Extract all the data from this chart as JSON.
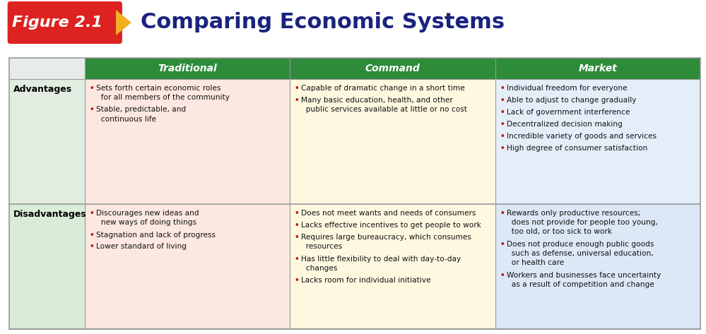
{
  "title": "Comparing Economic Systems",
  "figure_label": "Figure 2.1",
  "header_bg": "#2e8b3a",
  "header_text_color": "#ffffff",
  "columns": [
    "Traditional",
    "Command",
    "Market"
  ],
  "row_labels": [
    "Advantages",
    "Disadvantages"
  ],
  "title_color": "#1a237e",
  "figure_label_bg": "#dd2222",
  "figure_label_text_color": "#ffffff",
  "arrow_color": "#f0b020",
  "row_label_color": "#000000",
  "bullet_color": "#cc1111",
  "cell_bg_adv": [
    "#fce8e0",
    "#fef8e0",
    "#e4eef8"
  ],
  "cell_bg_dis": [
    "#fce8e0",
    "#fef8e0",
    "#dce8f5"
  ],
  "col0_bg_adv": "#e0ede0",
  "col0_bg_dis": "#d8ecd8",
  "border_color": "#999999",
  "header_line_color": "#dddddd",
  "content": {
    "adv_traditional": [
      [
        "• ",
        "Sets forth certain economic roles\n  for all members of the community"
      ],
      [
        "• ",
        "Stable, predictable, and\n  continuous life"
      ]
    ],
    "adv_command": [
      [
        "• ",
        "Capable of dramatic change in a short time"
      ],
      [
        "• ",
        "Many basic education, health, and other\n  public services available at little or no cost"
      ]
    ],
    "adv_market": [
      [
        "• ",
        "Individual freedom for everyone"
      ],
      [
        "• ",
        "Able to adjust to change gradually"
      ],
      [
        "• ",
        "Lack of government interference"
      ],
      [
        "• ",
        "Decentralized decision making"
      ],
      [
        "• ",
        "Incredible variety of goods and services"
      ],
      [
        "• ",
        "High degree of consumer satisfaction"
      ]
    ],
    "dis_traditional": [
      [
        "• ",
        "Discourages new ideas and\n  new ways of doing things"
      ],
      [
        "• ",
        "Stagnation and lack of progress"
      ],
      [
        "• ",
        "Lower standard of living"
      ]
    ],
    "dis_command": [
      [
        "• ",
        "Does not meet wants and needs of consumers"
      ],
      [
        "• ",
        "Lacks effective incentives to get people to work"
      ],
      [
        "• ",
        "Requires large bureaucracy, which consumes\n  resources"
      ],
      [
        "• ",
        "Has little flexibility to deal with day-to-day\n  changes"
      ],
      [
        "• ",
        "Lacks room for individual initiative"
      ]
    ],
    "dis_market": [
      [
        "• ",
        "Rewards only productive resources;\n  does not provide for people too young,\n  too old, or too sick to work"
      ],
      [
        "• ",
        "Does not produce enough public goods\n  such as defense, universal education,\n  or health care"
      ],
      [
        "• ",
        "Workers and businesses face uncertainty\n  as a result of competition and change"
      ]
    ]
  }
}
